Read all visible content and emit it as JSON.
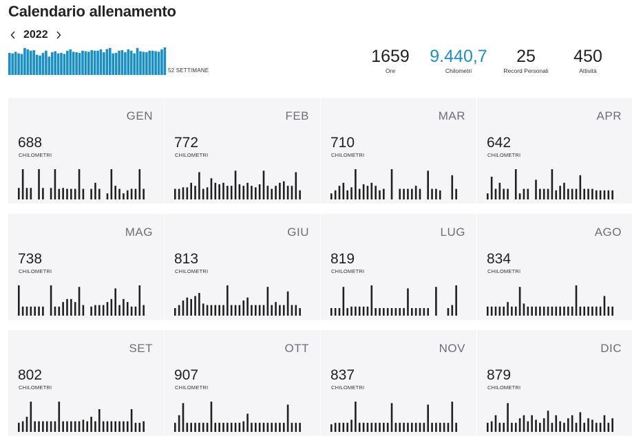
{
  "header": {
    "title": "Calendario allenamento",
    "year": "2022",
    "prev_icon": "chevron-left-icon",
    "next_icon": "chevron-right-icon"
  },
  "weekly_summary": {
    "label": "52 SETTIMANE",
    "color": "#1a8fc7",
    "values": [
      0.82,
      0.8,
      0.86,
      0.8,
      0.78,
      1.0,
      0.95,
      0.9,
      0.92,
      0.75,
      0.72,
      0.82,
      0.9,
      0.68,
      0.84,
      0.88,
      0.8,
      0.82,
      0.78,
      0.9,
      0.95,
      0.86,
      0.84,
      0.82,
      0.9,
      0.88,
      0.86,
      0.92,
      0.9,
      0.9,
      0.95,
      0.84,
      0.96,
      1.0,
      0.8,
      0.82,
      0.9,
      0.92,
      0.84,
      0.95,
      0.9,
      0.8,
      1.0,
      0.88,
      0.86,
      0.84,
      0.9,
      0.9,
      0.88,
      0.86,
      0.95,
      1.02
    ]
  },
  "stats": [
    {
      "value": "1659",
      "label": "Ore"
    },
    {
      "value": "9.440,7",
      "label": "Chilometri",
      "accent": true
    },
    {
      "value": "25",
      "label": "Record Personali"
    },
    {
      "value": "450",
      "label": "Attività"
    }
  ],
  "month_unit": "CHILOMETRI",
  "months": [
    {
      "name": "GEN",
      "km": "688",
      "bars": [
        0.38,
        1.0,
        0.38,
        0.38,
        0.0,
        1.0,
        0.38,
        0.0,
        0.38,
        1.0,
        0.35,
        0.38,
        0.35,
        0.35,
        0.35,
        1.0,
        0.35,
        0.0,
        0.35,
        0.55,
        0.35,
        0.0,
        0.2,
        1.0,
        0.45,
        0.35,
        0.2,
        0.3,
        0.35,
        0.35,
        1.0,
        0.35
      ]
    },
    {
      "name": "FEB",
      "km": "772",
      "bars": [
        0.35,
        0.35,
        0.4,
        0.4,
        0.55,
        0.45,
        0.9,
        0.35,
        0.4,
        0.7,
        0.55,
        0.5,
        0.55,
        0.45,
        0.45,
        0.95,
        0.5,
        0.45,
        0.55,
        0.45,
        0.4,
        0.5,
        0.95,
        0.45,
        0.35,
        0.45,
        0.55,
        0.6,
        0.45,
        0.45,
        0.9,
        0.3
      ]
    },
    {
      "name": "MAR",
      "km": "710",
      "bars": [
        0.2,
        0.3,
        0.45,
        0.55,
        0.3,
        0.4,
        1.0,
        0.35,
        0.5,
        0.45,
        0.55,
        0.45,
        0.3,
        0.35,
        0.0,
        1.0,
        0.0,
        0.35,
        0.35,
        0.35,
        0.35,
        0.45,
        0.35,
        0.0,
        0.95,
        0.35,
        0.35,
        0.3,
        0.0,
        0.0,
        0.8,
        0.35
      ]
    },
    {
      "name": "APR",
      "km": "642",
      "bars": [
        0.2,
        0.75,
        0.35,
        0.55,
        0.35,
        0.35,
        0.0,
        1.0,
        0.2,
        0.35,
        0.35,
        0.0,
        0.65,
        0.35,
        0.35,
        0.35,
        1.0,
        0.3,
        0.45,
        0.55,
        0.35,
        0.35,
        0.35,
        0.8,
        0.35,
        0.35,
        0.35,
        0.3,
        0.3,
        0.3,
        0.3,
        0.3
      ]
    },
    {
      "name": "MAG",
      "km": "738",
      "bars": [
        1.0,
        0.3,
        0.3,
        0.3,
        0.3,
        0.3,
        0.3,
        0.0,
        1.0,
        0.3,
        0.3,
        0.45,
        0.55,
        0.55,
        0.45,
        0.95,
        0.35,
        0.0,
        0.3,
        0.35,
        0.35,
        0.35,
        0.45,
        0.55,
        0.9,
        0.35,
        0.55,
        0.45,
        0.3,
        0.3,
        1.0,
        0.35
      ]
    },
    {
      "name": "GIU",
      "km": "813",
      "bars": [
        0.25,
        0.35,
        0.5,
        0.6,
        0.55,
        0.65,
        0.75,
        0.4,
        0.35,
        0.35,
        0.35,
        0.35,
        0.35,
        1.0,
        0.35,
        0.35,
        0.35,
        0.5,
        0.6,
        0.35,
        0.35,
        0.35,
        0.35,
        0.95,
        0.35,
        0.45,
        0.35,
        0.35,
        0.8,
        0.35,
        0.35,
        0.25
      ]
    },
    {
      "name": "LUG",
      "km": "819",
      "bars": [
        0.25,
        0.25,
        0.25,
        0.95,
        0.25,
        0.3,
        0.3,
        0.3,
        0.3,
        0.3,
        1.0,
        0.25,
        0.25,
        0.25,
        0.25,
        0.25,
        0.25,
        0.25,
        0.25,
        0.9,
        0.25,
        0.25,
        0.25,
        0.25,
        0.25,
        0.0,
        0.95,
        0.0,
        0.0,
        0.25,
        0.35,
        1.0
      ]
    },
    {
      "name": "AGO",
      "km": "834",
      "bars": [
        0.3,
        0.3,
        0.3,
        0.3,
        0.3,
        0.45,
        0.3,
        0.3,
        0.95,
        0.4,
        0.3,
        0.3,
        0.3,
        0.3,
        0.3,
        0.3,
        0.3,
        0.3,
        0.3,
        0.3,
        0.3,
        0.3,
        1.0,
        0.3,
        0.3,
        0.3,
        0.3,
        0.3,
        0.3,
        0.65,
        0.3,
        0.3
      ]
    },
    {
      "name": "SET",
      "km": "802",
      "bars": [
        0.3,
        0.35,
        0.5,
        1.0,
        0.35,
        0.35,
        0.35,
        0.35,
        0.35,
        0.35,
        1.0,
        0.35,
        0.35,
        0.35,
        0.35,
        0.35,
        0.4,
        0.35,
        0.5,
        0.35,
        0.75,
        0.35,
        0.35,
        0.35,
        0.35,
        0.35,
        0.35,
        0.35,
        0.75,
        0.3,
        0.3,
        0.35
      ]
    },
    {
      "name": "OTT",
      "km": "907",
      "bars": [
        0.3,
        0.55,
        0.95,
        0.3,
        0.3,
        0.3,
        0.3,
        0.3,
        0.3,
        1.0,
        0.3,
        0.3,
        0.3,
        0.3,
        0.3,
        0.3,
        0.3,
        0.35,
        0.6,
        0.3,
        0.3,
        0.3,
        0.3,
        0.3,
        0.3,
        0.3,
        0.3,
        0.3,
        0.9,
        0.3,
        0.3,
        0.3
      ]
    },
    {
      "name": "NOV",
      "km": "837",
      "bars": [
        0.25,
        0.3,
        0.3,
        0.3,
        0.3,
        0.4,
        1.0,
        0.3,
        0.3,
        0.3,
        0.3,
        0.3,
        0.3,
        0.3,
        0.3,
        0.95,
        0.3,
        0.3,
        0.3,
        0.3,
        0.3,
        0.3,
        0.3,
        0.3,
        0.9,
        0.3,
        0.3,
        0.3,
        0.3,
        0.3,
        1.0,
        0.3
      ]
    },
    {
      "name": "DIC",
      "km": "879",
      "bars": [
        0.3,
        0.35,
        0.55,
        0.3,
        0.3,
        0.95,
        0.3,
        0.3,
        0.45,
        0.55,
        0.35,
        0.55,
        0.4,
        0.3,
        0.45,
        0.7,
        0.3,
        0.55,
        0.35,
        0.3,
        0.45,
        0.55,
        0.3,
        0.65,
        0.3,
        0.45,
        0.4,
        0.3,
        0.3,
        0.55,
        0.3,
        0.45
      ]
    }
  ],
  "colors": {
    "bars": "#1f1f1f",
    "card_bg": "#f5f5f7",
    "accent": "#1a8fc7"
  }
}
